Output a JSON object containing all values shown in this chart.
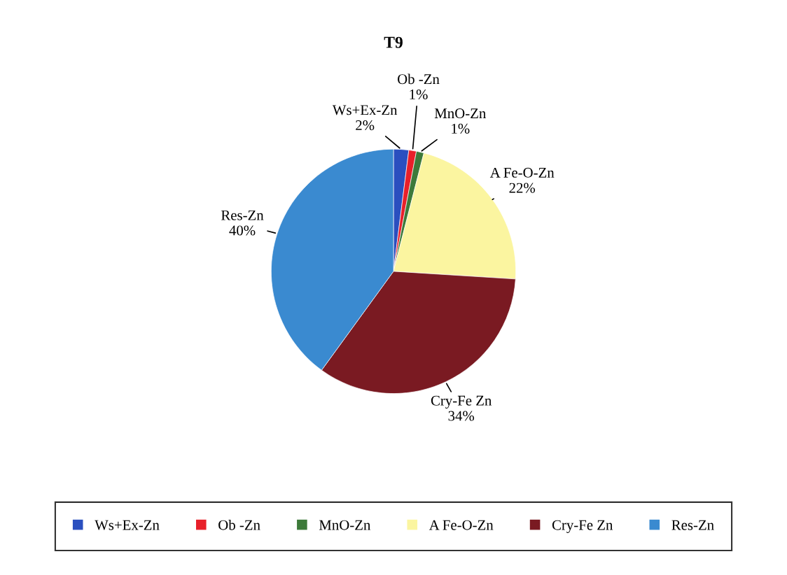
{
  "chart_data": {
    "type": "pie",
    "title": "T9",
    "categories": [
      "Ws+Ex-Zn",
      "Ob -Zn",
      "MnO-Zn",
      "A Fe-O-Zn",
      "Cry-Fe Zn",
      "Res-Zn"
    ],
    "values": [
      2,
      1,
      1,
      22,
      34,
      40
    ],
    "value_labels": [
      "2%",
      "1%",
      "1%",
      "22%",
      "34%",
      "40%"
    ],
    "colors": [
      "#2a4fbf",
      "#e8202a",
      "#3d7a3a",
      "#fbf5a0",
      "#7a1a22",
      "#3a8ad0"
    ],
    "legend": "bottom"
  }
}
